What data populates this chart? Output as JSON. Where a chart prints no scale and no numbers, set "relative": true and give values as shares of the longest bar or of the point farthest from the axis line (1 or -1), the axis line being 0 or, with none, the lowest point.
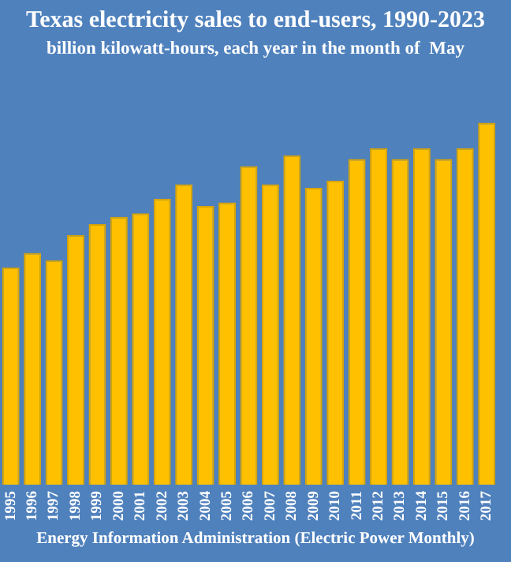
{
  "chart_data": {
    "type": "bar",
    "title": "Texas electricity sales to end-users, 1990-2023",
    "subtitle": "billion kilowatt-hours, each year in the month of  May",
    "relative": true,
    "categories": [
      "1995",
      "1996",
      "1997",
      "1998",
      "1999",
      "2000",
      "2001",
      "2002",
      "2003",
      "2004",
      "2005",
      "2006",
      "2007",
      "2008",
      "2009",
      "2010",
      "2011",
      "2012",
      "2013",
      "2014",
      "2015",
      "2016",
      "2017"
    ],
    "values": [
      0.6,
      0.64,
      0.62,
      0.69,
      0.72,
      0.74,
      0.75,
      0.79,
      0.83,
      0.77,
      0.78,
      0.88,
      0.83,
      0.91,
      0.82,
      0.84,
      0.9,
      0.93,
      0.9,
      0.93,
      0.9,
      0.93,
      1
    ],
    "color": "#ffc000",
    "grid": false,
    "legend": false,
    "annotations": [
      "Energy Information Administration (Electric Power Monthly)"
    ]
  }
}
